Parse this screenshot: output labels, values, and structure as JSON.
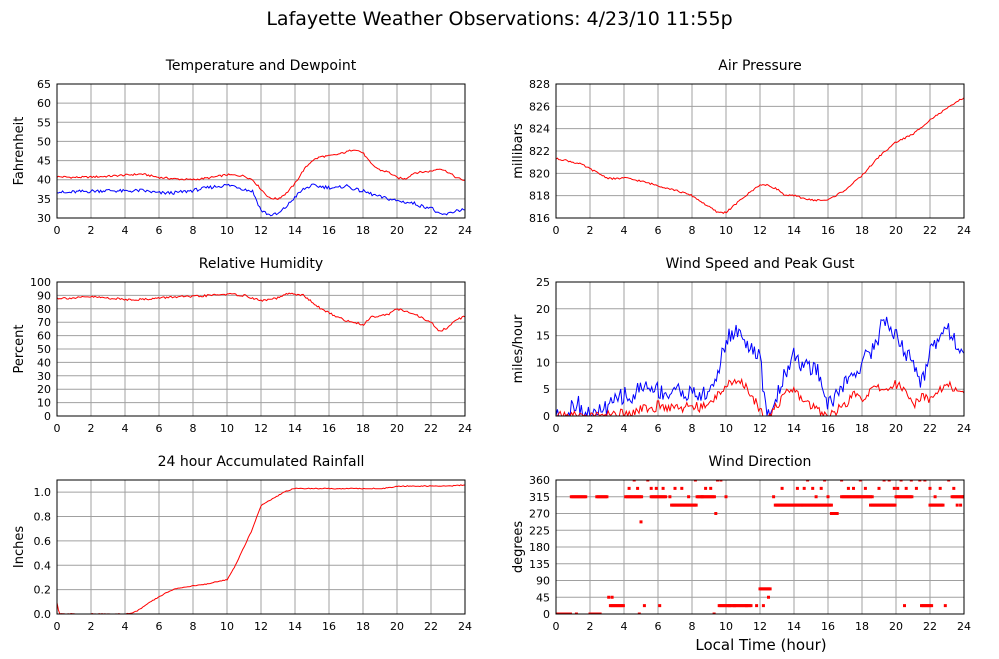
{
  "page": {
    "title": "Lafayette Weather Observations: 4/23/10 11:55p",
    "xaxis_label": "Local Time (hour)"
  },
  "colors": {
    "red": "#ff0000",
    "blue": "#0000ff",
    "grid": "#a0a0a0",
    "frame": "#000000"
  },
  "chart_data": [
    {
      "type": "line",
      "title": "Temperature and Dewpoint",
      "xlabel": "",
      "ylabel": "Fahrenheit",
      "xlim": [
        0,
        24
      ],
      "ylim": [
        30,
        65
      ],
      "x_ticks": [
        0,
        2,
        4,
        6,
        8,
        10,
        12,
        14,
        16,
        18,
        20,
        22,
        24
      ],
      "y_ticks": [
        30,
        35,
        40,
        45,
        50,
        55,
        60,
        65
      ],
      "grid": true,
      "series": [
        {
          "color": "red",
          "noise": 0.25,
          "x": [
            0,
            1,
            2,
            3,
            4,
            5,
            6,
            7,
            8,
            9,
            10,
            11,
            11.5,
            12,
            12.5,
            13,
            13.5,
            14,
            14.5,
            15,
            15.5,
            16,
            16.5,
            17,
            17.5,
            18,
            18.5,
            19,
            19.5,
            20,
            20.5,
            21,
            21.5,
            22,
            22.5,
            23,
            23.5,
            24
          ],
          "y": [
            40.8,
            40.6,
            40.7,
            40.9,
            41.2,
            41.5,
            40.6,
            40.2,
            40.0,
            40.5,
            41.3,
            41.0,
            40.0,
            37.5,
            35.2,
            35.0,
            36.5,
            39.0,
            42.5,
            45.0,
            46.0,
            46.2,
            46.6,
            47.2,
            48.0,
            47.0,
            44.0,
            42.5,
            42.0,
            40.5,
            40.2,
            41.8,
            42.0,
            42.2,
            43.0,
            42.0,
            40.5,
            39.8
          ]
        },
        {
          "color": "blue",
          "noise": 0.45,
          "x": [
            0,
            0.5,
            1,
            2,
            3,
            4,
            5,
            6,
            7,
            8,
            9,
            10,
            10.5,
            11,
            11.5,
            12,
            12.5,
            13,
            13.5,
            14,
            14.5,
            15,
            15.5,
            16,
            16.5,
            17,
            17.5,
            18,
            19,
            20,
            21,
            21.5,
            22,
            22.5,
            23,
            23.5,
            24
          ],
          "y": [
            37.0,
            36.5,
            36.8,
            37.0,
            37.2,
            37.0,
            37.2,
            36.5,
            36.6,
            37.2,
            38.0,
            38.6,
            38.3,
            37.5,
            37.0,
            32.0,
            30.8,
            31.0,
            33.0,
            35.5,
            37.5,
            38.5,
            38.2,
            38.0,
            37.8,
            38.5,
            37.5,
            37.0,
            35.5,
            34.5,
            33.8,
            33.0,
            32.8,
            30.8,
            31.0,
            32.0,
            32.2
          ]
        }
      ]
    },
    {
      "type": "line",
      "title": "Air Pressure",
      "xlabel": "",
      "ylabel": "millibars",
      "xlim": [
        0,
        24
      ],
      "ylim": [
        816,
        828
      ],
      "x_ticks": [
        0,
        2,
        4,
        6,
        8,
        10,
        12,
        14,
        16,
        18,
        20,
        22,
        24
      ],
      "y_ticks": [
        816,
        818,
        820,
        822,
        824,
        826,
        828
      ],
      "grid": true,
      "series": [
        {
          "color": "red",
          "noise": 0.08,
          "x": [
            0,
            0.5,
            1,
            1.5,
            2,
            2.5,
            3,
            3.5,
            4,
            5,
            6,
            7,
            8,
            9,
            9.5,
            10,
            11,
            12,
            12.5,
            13,
            13.5,
            14,
            15,
            16,
            17,
            18,
            19,
            20,
            21,
            22,
            23,
            24
          ],
          "y": [
            821.3,
            821.2,
            821.0,
            820.8,
            820.4,
            820.0,
            819.6,
            819.5,
            819.6,
            819.3,
            818.9,
            818.5,
            818.0,
            817.0,
            816.5,
            816.5,
            817.8,
            819.0,
            818.9,
            818.6,
            818.0,
            818.0,
            817.6,
            817.6,
            818.5,
            819.8,
            821.5,
            822.8,
            823.5,
            824.8,
            825.8,
            826.8
          ]
        }
      ]
    },
    {
      "type": "line",
      "title": "Relative Humidity",
      "xlabel": "",
      "ylabel": "Percent",
      "xlim": [
        0,
        24
      ],
      "ylim": [
        0,
        100
      ],
      "x_ticks": [
        0,
        2,
        4,
        6,
        8,
        10,
        12,
        14,
        16,
        18,
        20,
        22,
        24
      ],
      "y_ticks": [
        0,
        10,
        20,
        30,
        40,
        50,
        60,
        70,
        80,
        90,
        100
      ],
      "grid": true,
      "series": [
        {
          "color": "red",
          "noise": 0.8,
          "x": [
            0,
            1,
            2,
            3,
            4,
            5,
            6,
            7,
            8,
            9,
            10,
            11,
            12,
            13,
            13.5,
            14,
            14.5,
            15,
            15.5,
            16,
            16.5,
            17,
            17.5,
            18,
            18.5,
            19,
            19.5,
            20,
            20.5,
            21,
            21.5,
            22,
            22.5,
            23,
            23.5,
            24
          ],
          "y": [
            88,
            88,
            89,
            88,
            87,
            87,
            88,
            89,
            89,
            90,
            91,
            90,
            86,
            88,
            91,
            91,
            90,
            85,
            80,
            77,
            74,
            71,
            70,
            68,
            74,
            75,
            76,
            80,
            78,
            76,
            73,
            70,
            63,
            66,
            72,
            74
          ]
        }
      ]
    },
    {
      "type": "line",
      "title": "Wind Speed and Peak Gust",
      "xlabel": "",
      "ylabel": "miles/hour",
      "xlim": [
        0,
        24
      ],
      "ylim": [
        0,
        25
      ],
      "x_ticks": [
        0,
        2,
        4,
        6,
        8,
        10,
        12,
        14,
        16,
        18,
        20,
        22,
        24
      ],
      "y_ticks": [
        0,
        5,
        10,
        15,
        20,
        25
      ],
      "grid": true,
      "series": [
        {
          "color": "blue",
          "noise": 1.6,
          "x": [
            0,
            0.5,
            0.8,
            1.0,
            1.3,
            1.5,
            2.0,
            2.5,
            2.8,
            3.0,
            3.5,
            4.0,
            4.5,
            5.0,
            5.5,
            6.0,
            6.5,
            7.0,
            7.5,
            8.0,
            8.5,
            9.0,
            9.5,
            10.0,
            10.5,
            11.0,
            11.5,
            12.0,
            12.3,
            12.6,
            13.0,
            13.5,
            14.0,
            14.5,
            15.0,
            15.5,
            16.0,
            16.5,
            17.0,
            17.5,
            18.0,
            18.5,
            19.0,
            19.3,
            19.5,
            20.0,
            20.5,
            21.0,
            21.5,
            22.0,
            22.5,
            23.0,
            23.5,
            24.0
          ],
          "y": [
            0,
            0,
            1,
            2.5,
            2.5,
            1,
            0,
            0.5,
            2,
            1,
            3,
            4,
            3,
            6,
            5,
            5,
            4,
            5,
            4.5,
            4,
            4,
            4,
            8,
            14,
            16,
            15,
            12,
            11,
            2,
            0,
            4,
            8,
            12,
            9,
            9,
            8,
            2,
            4,
            6,
            8,
            10,
            12,
            15,
            19,
            17,
            15,
            12,
            10,
            6,
            12,
            15,
            17,
            14,
            11
          ]
        },
        {
          "color": "red",
          "noise": 0.9,
          "x": [
            0,
            1,
            2,
            2.5,
            3.0,
            3.5,
            4.0,
            4.5,
            5.0,
            5.5,
            6.0,
            6.5,
            7.0,
            7.5,
            8.0,
            8.5,
            9.0,
            9.5,
            10.0,
            10.5,
            11.0,
            11.5,
            12.0,
            12.5,
            13.0,
            13.5,
            14.0,
            14.5,
            15.0,
            15.5,
            16.0,
            16.5,
            17.0,
            17.5,
            18.0,
            18.5,
            19.0,
            19.5,
            20.0,
            20.5,
            21.0,
            21.5,
            22.0,
            22.5,
            23.0,
            23.5,
            24.0
          ],
          "y": [
            0,
            0,
            0,
            0,
            0.5,
            0,
            1,
            0.5,
            1.5,
            1,
            2,
            1.5,
            2,
            1.5,
            2,
            1.5,
            2,
            4,
            6,
            6,
            6,
            4,
            1,
            0,
            2,
            4,
            5,
            3,
            2,
            1,
            0,
            1,
            2,
            4,
            3,
            5,
            5,
            5,
            6,
            5,
            2,
            4,
            3,
            5,
            6,
            5,
            4
          ]
        }
      ]
    },
    {
      "type": "line",
      "title": "24 hour Accumulated Rainfall",
      "xlabel": "",
      "ylabel": "Inches",
      "xlim": [
        0,
        24
      ],
      "ylim": [
        0,
        1.1
      ],
      "x_ticks": [
        0,
        2,
        4,
        6,
        8,
        10,
        12,
        14,
        16,
        18,
        20,
        22,
        24
      ],
      "y_ticks": [
        0.0,
        0.2,
        0.4,
        0.6,
        0.8,
        1.0
      ],
      "y_tick_labels": [
        "0.0",
        "0.2",
        "0.4",
        "0.6",
        "0.8",
        "1.0"
      ],
      "grid": true,
      "series": [
        {
          "color": "red",
          "noise": 0.004,
          "x": [
            0,
            0.05,
            0.15,
            0.3,
            1,
            2,
            3,
            4,
            4.5,
            5,
            5.5,
            6,
            6.5,
            7,
            7.5,
            8,
            8.5,
            9,
            9.5,
            10,
            10.5,
            11,
            11.5,
            12,
            12.5,
            13,
            13.5,
            14,
            15,
            16,
            17,
            18,
            19,
            19.5,
            20,
            21,
            22,
            23,
            24
          ],
          "y": [
            0.09,
            0.05,
            0.0,
            0.0,
            0.0,
            0.0,
            0.0,
            0.0,
            0.01,
            0.05,
            0.1,
            0.14,
            0.18,
            0.21,
            0.22,
            0.23,
            0.24,
            0.25,
            0.27,
            0.28,
            0.4,
            0.55,
            0.7,
            0.89,
            0.93,
            0.97,
            1.01,
            1.03,
            1.03,
            1.03,
            1.03,
            1.03,
            1.03,
            1.035,
            1.05,
            1.05,
            1.05,
            1.05,
            1.06
          ]
        }
      ]
    },
    {
      "type": "scatter",
      "title": "Wind Direction",
      "xlabel": "Local Time (hour)",
      "ylabel": "degrees",
      "xlim": [
        0,
        24
      ],
      "ylim": [
        0,
        360
      ],
      "x_ticks": [
        0,
        2,
        4,
        6,
        8,
        10,
        12,
        14,
        16,
        18,
        20,
        22,
        24
      ],
      "y_ticks": [
        0,
        45,
        90,
        135,
        180,
        225,
        270,
        315,
        360
      ],
      "grid": true,
      "color": "red",
      "runs": [
        {
          "x0": 0.0,
          "x1": 0.9,
          "y": 0
        },
        {
          "x0": 0.9,
          "x1": 1.8,
          "y": 315
        },
        {
          "x0": 2.0,
          "x1": 2.6,
          "y": 0
        },
        {
          "x0": 2.4,
          "x1": 3.0,
          "y": 315
        },
        {
          "x0": 3.2,
          "x1": 4.0,
          "y": 22.5
        },
        {
          "x0": 4.1,
          "x1": 5.1,
          "y": 315
        },
        {
          "x0": 5.6,
          "x1": 6.5,
          "y": 315
        },
        {
          "x0": 6.8,
          "x1": 8.3,
          "y": 292.5
        },
        {
          "x0": 8.3,
          "x1": 9.4,
          "y": 315
        },
        {
          "x0": 9.6,
          "x1": 11.5,
          "y": 22.5
        },
        {
          "x0": 12.0,
          "x1": 12.6,
          "y": 67.5
        },
        {
          "x0": 12.9,
          "x1": 14.5,
          "y": 292.5
        },
        {
          "x0": 14.5,
          "x1": 16.2,
          "y": 292.5
        },
        {
          "x0": 16.2,
          "x1": 16.6,
          "y": 270
        },
        {
          "x0": 16.8,
          "x1": 18.5,
          "y": 315
        },
        {
          "x0": 18.5,
          "x1": 20.0,
          "y": 292.5
        },
        {
          "x0": 20.0,
          "x1": 21.0,
          "y": 315
        },
        {
          "x0": 21.5,
          "x1": 22.1,
          "y": 22.5
        },
        {
          "x0": 22.0,
          "x1": 22.8,
          "y": 292.5
        },
        {
          "x0": 23.3,
          "x1": 24.0,
          "y": 315
        }
      ],
      "points": [
        [
          1.2,
          0
        ],
        [
          2.2,
          0
        ],
        [
          3.1,
          45
        ],
        [
          3.3,
          45
        ],
        [
          4.3,
          337.5
        ],
        [
          4.6,
          360
        ],
        [
          4.8,
          337.5
        ],
        [
          4.9,
          0
        ],
        [
          5.0,
          247.5
        ],
        [
          5.2,
          22.5
        ],
        [
          5.4,
          360
        ],
        [
          5.6,
          337.5
        ],
        [
          5.9,
          337.5
        ],
        [
          6.1,
          22.5
        ],
        [
          6.3,
          337.5
        ],
        [
          6.7,
          315
        ],
        [
          7.0,
          337.5
        ],
        [
          7.4,
          337.5
        ],
        [
          7.8,
          315
        ],
        [
          8.2,
          360
        ],
        [
          8.6,
          315
        ],
        [
          8.8,
          337.5
        ],
        [
          9.1,
          337.5
        ],
        [
          9.3,
          0
        ],
        [
          9.4,
          270
        ],
        [
          9.5,
          360
        ],
        [
          9.7,
          360
        ],
        [
          10.0,
          315
        ],
        [
          10.2,
          22.5
        ],
        [
          10.5,
          22.5
        ],
        [
          11.2,
          22.5
        ],
        [
          11.8,
          22.5
        ],
        [
          12.2,
          22.5
        ],
        [
          12.5,
          45
        ],
        [
          12.8,
          315
        ],
        [
          13.3,
          337.5
        ],
        [
          14.2,
          337.5
        ],
        [
          14.6,
          337.5
        ],
        [
          14.8,
          360
        ],
        [
          15.1,
          337.5
        ],
        [
          15.3,
          315
        ],
        [
          15.6,
          337.5
        ],
        [
          15.8,
          360
        ],
        [
          16.0,
          315
        ],
        [
          16.8,
          360
        ],
        [
          17.2,
          337.5
        ],
        [
          17.5,
          337.5
        ],
        [
          17.9,
          360
        ],
        [
          18.2,
          337.5
        ],
        [
          18.6,
          315
        ],
        [
          19.0,
          337.5
        ],
        [
          19.3,
          360
        ],
        [
          19.6,
          360
        ],
        [
          19.9,
          337.5
        ],
        [
          20.1,
          337.5
        ],
        [
          20.3,
          360
        ],
        [
          20.5,
          22.5
        ],
        [
          20.6,
          337.5
        ],
        [
          20.9,
          360
        ],
        [
          21.2,
          337.5
        ],
        [
          21.4,
          360
        ],
        [
          21.7,
          360
        ],
        [
          22.0,
          337.5
        ],
        [
          22.3,
          315
        ],
        [
          22.6,
          337.5
        ],
        [
          22.9,
          22.5
        ],
        [
          23.1,
          360
        ],
        [
          23.4,
          337.5
        ],
        [
          23.6,
          292.5
        ],
        [
          23.8,
          292.5
        ],
        [
          24.0,
          315
        ]
      ]
    }
  ]
}
